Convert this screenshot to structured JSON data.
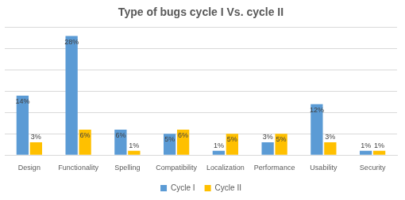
{
  "chart_data": {
    "type": "bar",
    "title": "Type of bugs cycle I Vs. cycle II",
    "categories": [
      "Design",
      "Functionality",
      "Spelling",
      "Compatibility",
      "Localization",
      "Performance",
      "Usability",
      "Security"
    ],
    "series": [
      {
        "name": "Cycle I",
        "color": "#5b9bd5",
        "values": [
          14,
          28,
          6,
          5,
          1,
          3,
          12,
          1
        ],
        "value_labels": [
          "14%",
          "28%",
          "6%",
          "5%",
          "1%",
          "3%",
          "12%",
          "1%"
        ]
      },
      {
        "name": "Cycle II",
        "color": "#ffc000",
        "values": [
          3,
          6,
          1,
          6,
          5,
          5,
          3,
          1
        ],
        "value_labels": [
          "3%",
          "6%",
          "1%",
          "6%",
          "5%",
          "5%",
          "3%",
          "1%"
        ]
      }
    ],
    "ylim": [
      0,
      30
    ],
    "yticks": [
      0,
      5,
      10,
      15,
      20,
      25,
      30
    ],
    "grid": true,
    "legend": "bottom",
    "data_labels": true,
    "tick_labels": "x"
  }
}
